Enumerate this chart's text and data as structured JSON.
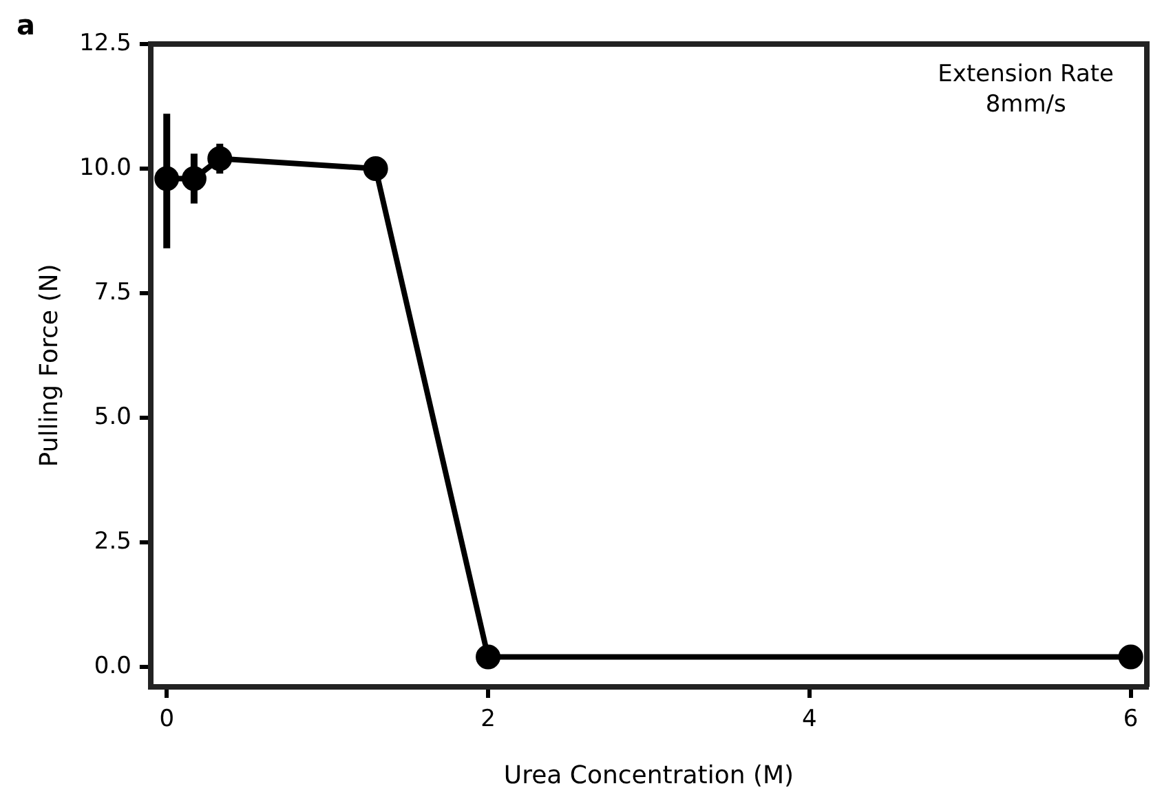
{
  "chart_data": {
    "type": "line",
    "title": "a",
    "xlabel": "Urea Concentration (M)",
    "ylabel": "Pulling Force (N)",
    "x": [
      0,
      0.17,
      0.33,
      1.3,
      2,
      6
    ],
    "series": [
      {
        "color": "#000000",
        "values": [
          9.8,
          9.8,
          10.2,
          10.0,
          0.2,
          0.2
        ],
        "errors": [
          [
            8.4,
            11.1
          ],
          [
            9.3,
            10.3
          ],
          [
            9.9,
            10.5
          ],
          null,
          null,
          null
        ]
      }
    ],
    "xlim": [
      -0.1,
      6.1
    ],
    "xticks": [
      0,
      2,
      4,
      6
    ],
    "ylim": [
      -0.4,
      12.5
    ],
    "yticks": [
      {
        "value": 0,
        "label": "0.0"
      },
      {
        "value": 2.5,
        "label": "2.5"
      },
      {
        "value": 5,
        "label": "5.0"
      },
      {
        "value": 7.5,
        "label": "7.5"
      },
      {
        "value": 10,
        "label": "10.0"
      },
      {
        "value": 12.5,
        "label": "12.5"
      }
    ],
    "annotations": [
      "Extension Rate\n8mm/s"
    ],
    "grid": false,
    "legend": false,
    "marker": "circle",
    "line_style": "solid"
  }
}
